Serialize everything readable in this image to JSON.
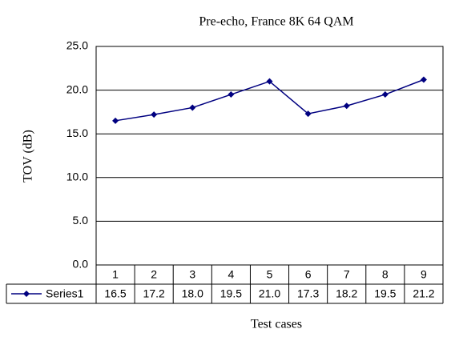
{
  "chart_data": {
    "type": "line",
    "title": "Pre-echo, France 8K 64 QAM",
    "x_label": "Test cases",
    "y_label": "TOV (dB)",
    "categories": [
      "1",
      "2",
      "3",
      "4",
      "5",
      "6",
      "7",
      "8",
      "9"
    ],
    "series": [
      {
        "name": "Series1",
        "color": "#000080",
        "values": [
          16.5,
          17.2,
          18.0,
          19.5,
          21.0,
          17.3,
          18.2,
          19.5,
          21.2
        ],
        "value_labels": [
          "16.5",
          "17.2",
          "18.0",
          "19.5",
          "21.0",
          "17.3",
          "18.2",
          "19.5",
          "21.2"
        ]
      }
    ],
    "ylim": [
      0,
      25
    ],
    "yticks": [
      {
        "value": 0,
        "label": "0.0"
      },
      {
        "value": 5,
        "label": "5.0"
      },
      {
        "value": 10,
        "label": "10.0"
      },
      {
        "value": 15,
        "label": "15.0"
      },
      {
        "value": 20,
        "label": "20.0"
      },
      {
        "value": 25,
        "label": "25.0"
      }
    ],
    "grid": true,
    "data_table": true
  }
}
